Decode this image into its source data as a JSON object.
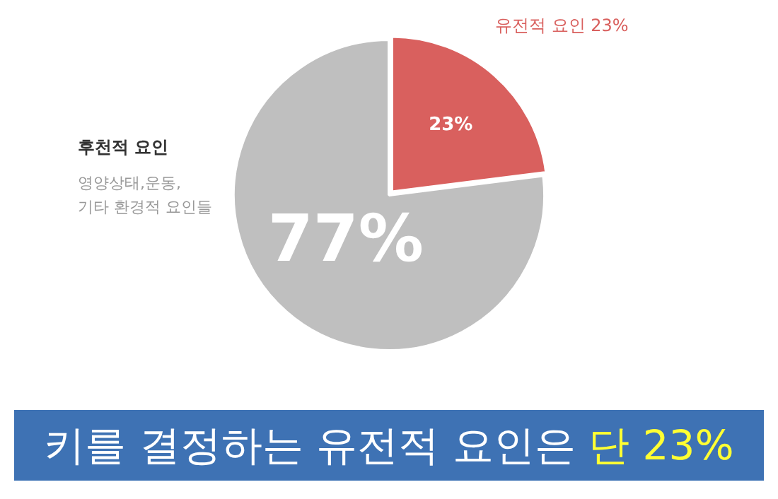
{
  "chart_data": {
    "type": "pie",
    "title": "키를 결정하는 유전적 요인은 단 23%",
    "categories": [
      "유전적 요인",
      "후천적 요인"
    ],
    "values": [
      23,
      77
    ],
    "colors": [
      "#d9605e",
      "#bfbfbf"
    ],
    "value_labels": [
      "23%",
      "77%"
    ],
    "annotations": [
      "영양상태,운동,",
      "기타 환경적 요인들"
    ],
    "legend": false
  }
}
